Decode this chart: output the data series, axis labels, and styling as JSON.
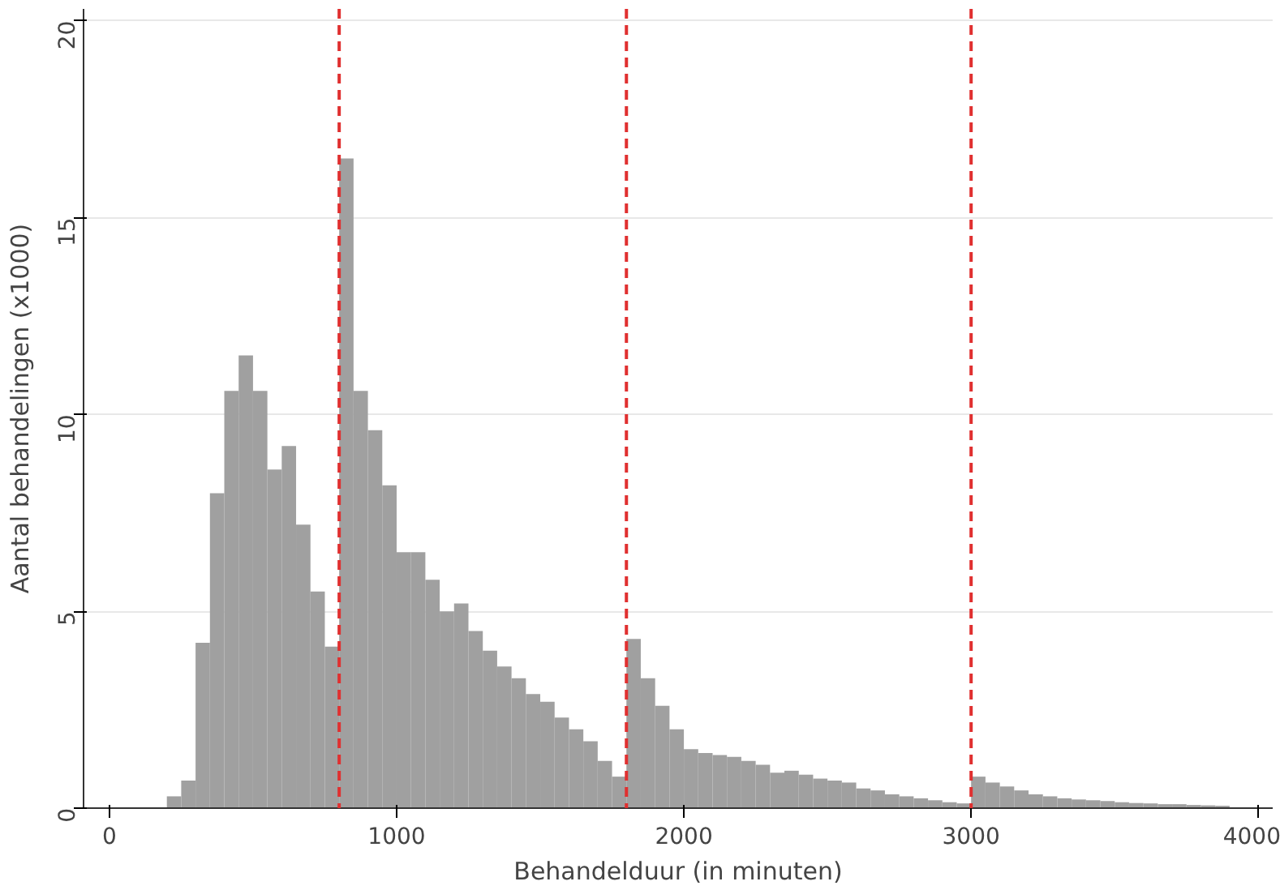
{
  "chart_data": {
    "type": "histogram",
    "xlabel": "Behandelduur (in minuten)",
    "ylabel": "Aantal behandelingen (x1000)",
    "bins": [
      200,
      250,
      300,
      350,
      400,
      450,
      500,
      550,
      600,
      650,
      700,
      750,
      800,
      850,
      900,
      950,
      1000,
      1050,
      1100,
      1150,
      1200,
      1250,
      1300,
      1350,
      1400,
      1450,
      1500,
      1550,
      1600,
      1650,
      1700,
      1750,
      1800,
      1850,
      1900,
      1950,
      2000,
      2050,
      2100,
      2150,
      2200,
      2250,
      2300,
      2350,
      2400,
      2450,
      2500,
      2550,
      2600,
      2650,
      2700,
      2750,
      2800,
      2850,
      2900,
      2950,
      3000,
      3050,
      3100,
      3150,
      3200,
      3250,
      3300,
      3350,
      3400,
      3450,
      3500,
      3550,
      3600,
      3650,
      3700,
      3750,
      3800,
      3850,
      3900,
      3950,
      4000
    ],
    "values": [
      0.3,
      0.7,
      4.2,
      8.0,
      10.6,
      11.5,
      10.6,
      8.6,
      9.2,
      7.2,
      5.5,
      4.1,
      16.5,
      10.6,
      9.6,
      8.2,
      6.5,
      6.5,
      5.8,
      5.0,
      5.2,
      4.5,
      4.0,
      3.6,
      3.3,
      2.9,
      2.7,
      2.3,
      2.0,
      1.7,
      1.2,
      0.8,
      4.3,
      3.3,
      2.6,
      2.0,
      1.5,
      1.4,
      1.35,
      1.3,
      1.2,
      1.1,
      0.9,
      0.95,
      0.85,
      0.75,
      0.7,
      0.65,
      0.5,
      0.45,
      0.35,
      0.3,
      0.25,
      0.2,
      0.15,
      0.12,
      0.8,
      0.65,
      0.55,
      0.45,
      0.35,
      0.3,
      0.25,
      0.22,
      0.2,
      0.18,
      0.15,
      0.13,
      0.12,
      0.1,
      0.1,
      0.08,
      0.07,
      0.06,
      null,
      null
    ],
    "color": "#a0a0a0",
    "xlim": [
      -90,
      4050
    ],
    "ylim": [
      0,
      20.3
    ],
    "xticks": [
      0,
      1000,
      2000,
      3000,
      4000
    ],
    "yticks": [
      0,
      5,
      10,
      15,
      20
    ],
    "grid": "y",
    "ref_lines": [
      {
        "axis": "x",
        "value": 800,
        "color": "#e03030",
        "line_style": "dashed"
      },
      {
        "axis": "x",
        "value": 1800,
        "color": "#e03030",
        "line_style": "dashed"
      },
      {
        "axis": "x",
        "value": 3000,
        "color": "#e03030",
        "line_style": "dashed"
      }
    ]
  }
}
